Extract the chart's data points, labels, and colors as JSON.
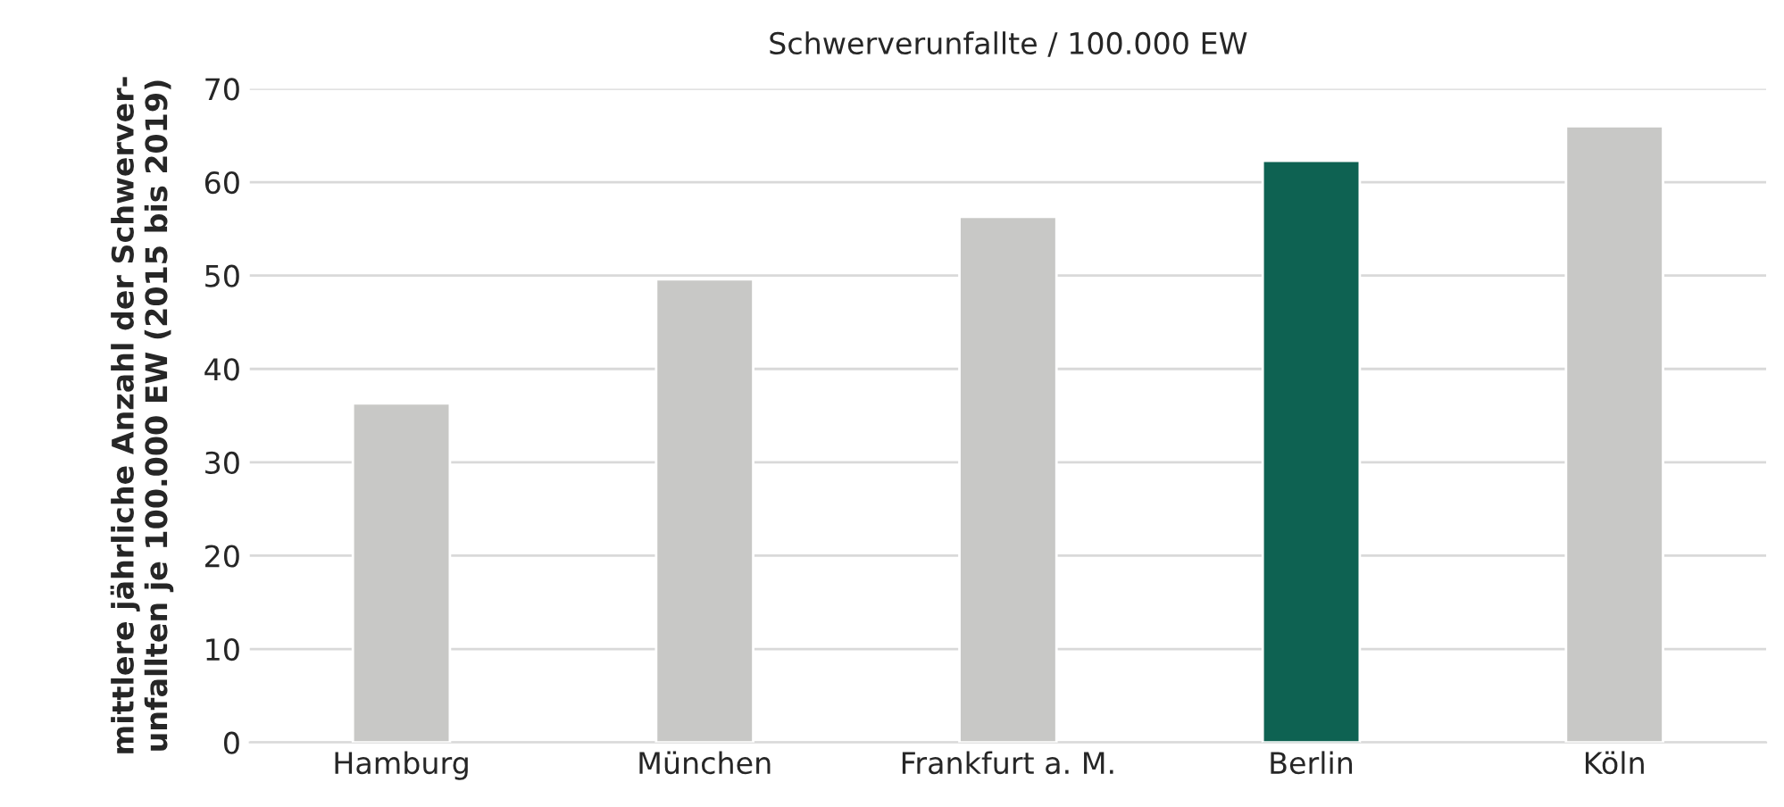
{
  "chart_data": {
    "type": "bar",
    "title": "Schwerverunfallte / 100.000 EW",
    "ylabel": "mittlere jährliche Anzahl der Schwerver-\nunfallten je 100.000 EW (2015 bis 2019)",
    "categories": [
      "Hamburg",
      "München",
      "Frankfurt a. M.",
      "Berlin",
      "Köln"
    ],
    "values": [
      36.3,
      49.6,
      56.3,
      62.3,
      66.0
    ],
    "colors": [
      "#c8c8c6",
      "#c8c8c6",
      "#c8c8c6",
      "#00705a",
      "#c8c8c6"
    ],
    "ylim": [
      0,
      70
    ],
    "yticks": [
      0,
      10,
      20,
      30,
      40,
      50,
      60,
      70
    ],
    "grid": "y"
  }
}
